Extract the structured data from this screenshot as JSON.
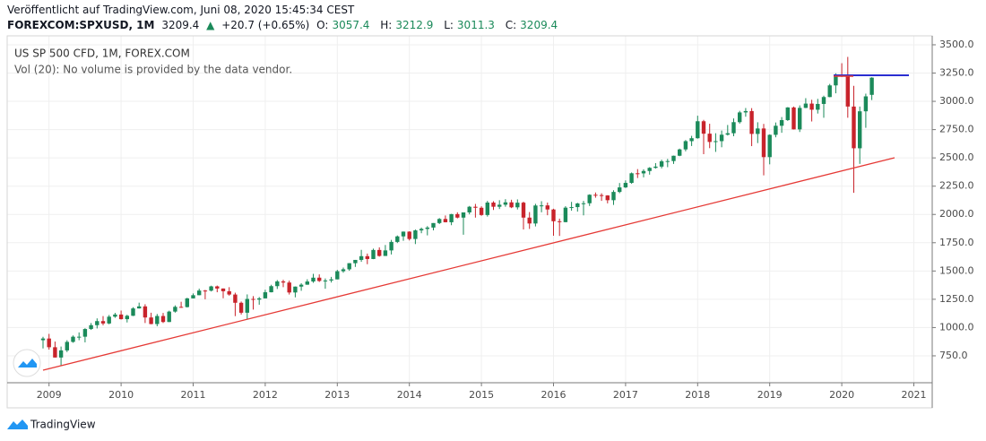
{
  "header": {
    "published": "Veröffentlicht auf TradingView.com, Juni 08, 2020 15:45:34 CEST",
    "symbol": "FOREXCOM:SPXUSD, 1M",
    "change_arrow": "▲",
    "change": "+20.7 (+0.65%)",
    "keys": [
      "O:",
      "H:",
      "L:",
      "C:"
    ]
  },
  "footer": {
    "brand": "TradingView"
  },
  "chart_data": {
    "type": "candlestick",
    "title": "US SP 500 CFD, 1M, FOREX.COM",
    "subtitle": "Vol (20): No volume is provided by the data vendor.",
    "categories": [
      null,
      "2009",
      null,
      null,
      null,
      null,
      null,
      null,
      null,
      null,
      null,
      null,
      null,
      "2010",
      null,
      null,
      null,
      null,
      null,
      null,
      null,
      null,
      null,
      null,
      null,
      "2011",
      null,
      null,
      null,
      null,
      null,
      null,
      null,
      null,
      null,
      null,
      null,
      "2012",
      null,
      null,
      null,
      null,
      null,
      null,
      null,
      null,
      null,
      null,
      null,
      "2013",
      null,
      null,
      null,
      null,
      null,
      null,
      null,
      null,
      null,
      null,
      null,
      "2014",
      null,
      null,
      null,
      null,
      null,
      null,
      null,
      null,
      null,
      null,
      null,
      "2015",
      null,
      null,
      null,
      null,
      null,
      null,
      null,
      null,
      null,
      null,
      null,
      "2016",
      null,
      null,
      null,
      null,
      null,
      null,
      null,
      null,
      null,
      null,
      null,
      "2017",
      null,
      null,
      null,
      null,
      null,
      null,
      null,
      null,
      null,
      null,
      null,
      "2018",
      null,
      null,
      null,
      null,
      null,
      null,
      null,
      null,
      null,
      null,
      null,
      "2019",
      null,
      null,
      null,
      null,
      null,
      null,
      null,
      null,
      null,
      null,
      null,
      "2020",
      null,
      null,
      null,
      null,
      null,
      null,
      null,
      null,
      null,
      null,
      null,
      "2021"
    ],
    "open": [
      888,
      903,
      826,
      735,
      798,
      873,
      919,
      919,
      987,
      1021,
      1057,
      1036,
      1096,
      1115,
      1074,
      1104,
      1169,
      1187,
      1089,
      1031,
      1102,
      1049,
      1141,
      1183,
      1181,
      1258,
      1286,
      1327,
      1326,
      1364,
      1345,
      1321,
      1292,
      1219,
      1131,
      1253,
      1247,
      1258,
      1312,
      1366,
      1408,
      1398,
      1310,
      1362,
      1379,
      1407,
      1441,
      1412,
      1416,
      1426,
      1498,
      1515,
      1569,
      1598,
      1631,
      1606,
      1686,
      1633,
      1682,
      1757,
      1806,
      1848,
      1783,
      1859,
      1872,
      1884,
      1924,
      1960,
      1931,
      2003,
      1972,
      2018,
      2068,
      2059,
      1995,
      2105,
      2068,
      2086,
      2107,
      2063,
      2104,
      1972,
      1920,
      2079,
      2080,
      2044,
      1940,
      1932,
      2060,
      2065,
      2097,
      2099,
      2174,
      2171,
      2168,
      2126,
      2199,
      2239,
      2279,
      2364,
      2363,
      2384,
      2412,
      2423,
      2470,
      2472,
      2519,
      2575,
      2648,
      2674,
      2824,
      2714,
      2641,
      2648,
      2705,
      2718,
      2816,
      2902,
      2914,
      2712,
      2760,
      2507,
      2704,
      2784,
      2834,
      2946,
      2752,
      2942,
      2980,
      2926,
      2977,
      3038,
      3141,
      3231,
      3226,
      2954,
      2585,
      2912,
      3057.4,
      null,
      null,
      null,
      null,
      null,
      null,
      null
    ],
    "high": [
      918,
      944,
      876,
      832,
      888,
      930,
      957,
      994,
      1040,
      1081,
      1101,
      1111,
      1130,
      1150,
      1113,
      1180,
      1220,
      1206,
      1131,
      1120,
      1129,
      1149,
      1196,
      1228,
      1263,
      1302,
      1344,
      1333,
      1370,
      1371,
      1346,
      1357,
      1308,
      1230,
      1293,
      1278,
      1270,
      1334,
      1378,
      1420,
      1422,
      1415,
      1363,
      1392,
      1427,
      1475,
      1470,
      1434,
      1448,
      1510,
      1530,
      1570,
      1598,
      1687,
      1654,
      1698,
      1709,
      1730,
      1775,
      1814,
      1849,
      1851,
      1867,
      1884,
      1897,
      1924,
      1968,
      1991,
      2005,
      2019,
      2018,
      2075,
      2093,
      2072,
      2120,
      2117,
      2126,
      2135,
      2130,
      2133,
      2113,
      2021,
      2094,
      2117,
      2105,
      2050,
      1963,
      2073,
      2111,
      2103,
      2120,
      2178,
      2194,
      2187,
      2170,
      2214,
      2278,
      2301,
      2371,
      2401,
      2399,
      2418,
      2454,
      2484,
      2491,
      2520,
      2582,
      2658,
      2695,
      2873,
      2836,
      2802,
      2718,
      2742,
      2791,
      2849,
      2916,
      2941,
      2940,
      2815,
      2800,
      2708,
      2813,
      2861,
      2949,
      2954,
      2964,
      3028,
      3014,
      3022,
      3050,
      3154,
      3248,
      3337,
      3393,
      3137,
      2954,
      3068,
      3212.9,
      null,
      null,
      null,
      null,
      null,
      null,
      null
    ],
    "low": [
      815,
      805,
      735,
      666,
      783,
      866,
      888,
      869,
      979,
      992,
      1020,
      1029,
      1086,
      1071,
      1045,
      1101,
      1168,
      1040,
      1029,
      1011,
      1040,
      1048,
      1132,
      1174,
      1177,
      1257,
      1285,
      1250,
      1319,
      1312,
      1259,
      1282,
      1101,
      1115,
      1074,
      1159,
      1202,
      1258,
      1311,
      1341,
      1357,
      1292,
      1267,
      1325,
      1378,
      1396,
      1403,
      1343,
      1398,
      1426,
      1485,
      1502,
      1536,
      1581,
      1560,
      1605,
      1627,
      1633,
      1646,
      1747,
      1767,
      1770,
      1738,
      1834,
      1815,
      1859,
      1915,
      1930,
      1905,
      1965,
      1821,
      2001,
      1972,
      1988,
      1981,
      2040,
      2048,
      2068,
      2056,
      2044,
      1867,
      1872,
      1894,
      2019,
      1993,
      1812,
      1810,
      1931,
      2033,
      2025,
      1992,
      2075,
      2148,
      2120,
      2098,
      2084,
      2188,
      2234,
      2271,
      2322,
      2328,
      2352,
      2405,
      2407,
      2418,
      2447,
      2515,
      2558,
      2605,
      2670,
      2533,
      2586,
      2553,
      2594,
      2698,
      2691,
      2803,
      2864,
      2604,
      2631,
      2346,
      2443,
      2682,
      2722,
      2827,
      2751,
      2729,
      2940,
      2822,
      2892,
      2855,
      3036,
      3071,
      3215,
      2855,
      2191,
      2447,
      2766,
      3011.3,
      null,
      null,
      null,
      null,
      null,
      null,
      null
    ],
    "close": [
      903,
      826,
      735,
      798,
      873,
      919,
      919,
      987,
      1021,
      1057,
      1036,
      1096,
      1115,
      1074,
      1104,
      1169,
      1187,
      1089,
      1031,
      1102,
      1049,
      1141,
      1183,
      1181,
      1258,
      1286,
      1327,
      1326,
      1364,
      1345,
      1321,
      1292,
      1219,
      1131,
      1253,
      1247,
      1258,
      1312,
      1366,
      1408,
      1398,
      1310,
      1362,
      1379,
      1407,
      1441,
      1412,
      1416,
      1426,
      1498,
      1515,
      1569,
      1598,
      1631,
      1606,
      1686,
      1633,
      1682,
      1757,
      1806,
      1848,
      1783,
      1859,
      1872,
      1884,
      1924,
      1960,
      1931,
      2003,
      1972,
      2018,
      2068,
      2059,
      1995,
      2105,
      2068,
      2086,
      2107,
      2063,
      2104,
      1972,
      1920,
      2079,
      2080,
      2044,
      1940,
      1932,
      2060,
      2065,
      2097,
      2099,
      2174,
      2171,
      2168,
      2126,
      2199,
      2239,
      2279,
      2364,
      2363,
      2384,
      2412,
      2423,
      2470,
      2472,
      2519,
      2575,
      2648,
      2674,
      2824,
      2714,
      2641,
      2648,
      2705,
      2718,
      2816,
      2902,
      2914,
      2712,
      2760,
      2507,
      2704,
      2784,
      2834,
      2946,
      2752,
      2942,
      2980,
      2926,
      2977,
      3038,
      3141,
      3231,
      3226,
      2954,
      2585,
      2912,
      3044,
      3209.4,
      null,
      null,
      null,
      null,
      null,
      null,
      null
    ],
    "up_color": "#1b8a5a",
    "down_color": "#c8232b",
    "ylim": [
      512,
      3579
    ],
    "yticks": [
      {
        "value": 750,
        "label": "750.0"
      },
      {
        "value": 1000,
        "label": "1000.0"
      },
      {
        "value": 1250,
        "label": "1250.0"
      },
      {
        "value": 1500,
        "label": "1500.0"
      },
      {
        "value": 1750,
        "label": "1750.0"
      },
      {
        "value": 2000,
        "label": "2000.0"
      },
      {
        "value": 2250,
        "label": "2250.0"
      },
      {
        "value": 2500,
        "label": "2500.0"
      },
      {
        "value": 2750,
        "label": "2750.0"
      },
      {
        "value": 3000,
        "label": "3000.0"
      },
      {
        "value": 3250,
        "label": "3250.0"
      },
      {
        "value": 3500,
        "label": "3500.0"
      }
    ],
    "grid": true
  }
}
